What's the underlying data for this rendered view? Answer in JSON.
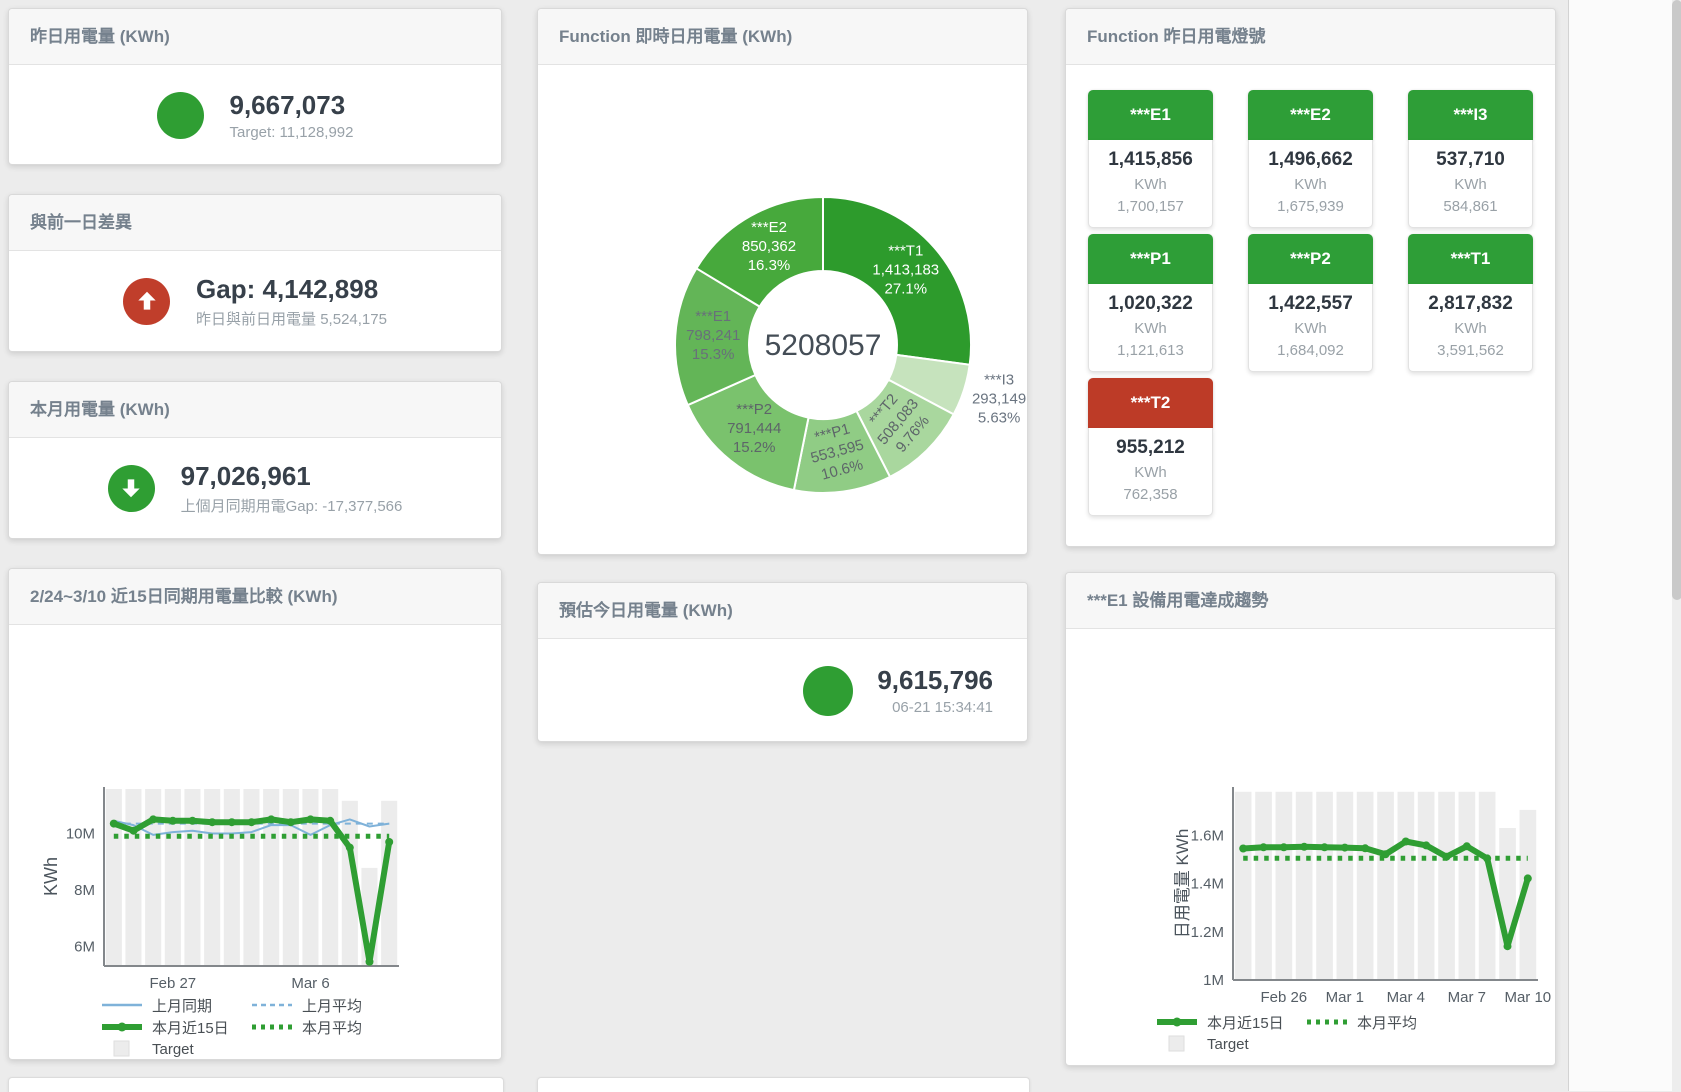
{
  "cards": {
    "yesterday": {
      "title": "昨日用電量 (KWh)",
      "value": "9,667,073",
      "sub": "Target: 11,128,992"
    },
    "day_gap": {
      "title": "與前一日差異",
      "value": "Gap: 4,142,898",
      "sub": "昨日與前日用電量 5,524,175"
    },
    "month": {
      "title": "本月用電量 (KWh)",
      "value": "97,026,961",
      "sub": "上個月同期用電Gap: -17,377,566"
    },
    "compare": {
      "title": "2/24~3/10 近15日同期用電量比較 (KWh)"
    },
    "realtime": {
      "title": "Function 即時日用電量 (KWh)"
    },
    "estimate": {
      "title": "預估今日用電量 (KWh)",
      "value": "9,615,796",
      "sub": "06-21 15:34:41"
    },
    "lights": {
      "title": "Function 昨日用電燈號"
    },
    "trend": {
      "title": "***E1 設備用電達成趨勢"
    }
  },
  "lights_tiles": [
    {
      "name": "***E1",
      "value": "1,415,856",
      "unit": "KWh",
      "target": "1,700,157",
      "status": "green"
    },
    {
      "name": "***E2",
      "value": "1,496,662",
      "unit": "KWh",
      "target": "1,675,939",
      "status": "green"
    },
    {
      "name": "***I3",
      "value": "537,710",
      "unit": "KWh",
      "target": "584,861",
      "status": "green"
    },
    {
      "name": "***P1",
      "value": "1,020,322",
      "unit": "KWh",
      "target": "1,121,613",
      "status": "green"
    },
    {
      "name": "***P2",
      "value": "1,422,557",
      "unit": "KWh",
      "target": "1,684,092",
      "status": "green"
    },
    {
      "name": "***T1",
      "value": "2,817,832",
      "unit": "KWh",
      "target": "3,591,562",
      "status": "green"
    },
    {
      "name": "***T2",
      "value": "955,212",
      "unit": "KWh",
      "target": "762,358",
      "status": "red"
    }
  ],
  "chart_data": [
    {
      "id": "realtime_donut",
      "type": "pie",
      "title": "Function 即時日用電量 (KWh)",
      "center_total": "5208057",
      "slices": [
        {
          "name": "***T1",
          "value": 1413183,
          "value_label": "1,413,183",
          "pct": "27.1%",
          "color": "#2d9b2c",
          "label_color": "#ffffff",
          "rotate": 0
        },
        {
          "name": "***I3",
          "value": 293149,
          "value_label": "293,149",
          "pct": "5.63%",
          "color": "#c6e3bd",
          "label_color": "#6a7480",
          "rotate": 0,
          "outside": true
        },
        {
          "name": "***T2",
          "value": 508083,
          "value_label": "508,083",
          "pct": "9.76%",
          "color": "#a9d79e",
          "label_color": "#5d6569",
          "rotate": -50
        },
        {
          "name": "***P1",
          "value": 553595,
          "value_label": "553,595",
          "pct": "10.6%",
          "color": "#90cc85",
          "label_color": "#5d6569",
          "rotate": -15
        },
        {
          "name": "***P2",
          "value": 791444,
          "value_label": "791,444",
          "pct": "15.2%",
          "color": "#7ac26d",
          "label_color": "#5d6569",
          "rotate": 0
        },
        {
          "name": "***E1",
          "value": 798241,
          "value_label": "798,241",
          "pct": "15.3%",
          "color": "#63b557",
          "label_color": "#68707a",
          "rotate": 0
        },
        {
          "name": "***E2",
          "value": 850362,
          "value_label": "850,362",
          "pct": "16.3%",
          "color": "#47a93c",
          "label_color": "#ffffff",
          "rotate": 0
        }
      ]
    },
    {
      "id": "compare_lines",
      "type": "line",
      "title": "2/24~3/10 近15日同期用電量比較 (KWh)",
      "ylabel": "KWh",
      "ylim": [
        5300000,
        11650000
      ],
      "yticks": [
        {
          "v": 6000000,
          "label": "6M"
        },
        {
          "v": 8000000,
          "label": "8M"
        },
        {
          "v": 10000000,
          "label": "10M"
        }
      ],
      "xticks": [
        {
          "i": 3,
          "label": "Feb 27"
        },
        {
          "i": 10,
          "label": "Mar 6"
        }
      ],
      "target_bars": [
        11580000,
        11580000,
        11580000,
        11580000,
        11580000,
        11580000,
        11580000,
        11580000,
        11580000,
        11580000,
        11580000,
        11580000,
        11160000,
        8780000,
        11160000
      ],
      "series": [
        {
          "name": "上月同期",
          "style": "thin",
          "color": "#7fb2d9",
          "values": [
            10450000,
            10300000,
            9950000,
            10050000,
            10100000,
            10000000,
            10000000,
            10050000,
            10300000,
            10300000,
            9950000,
            10300000,
            10500000,
            10250000,
            10350000
          ]
        },
        {
          "name": "上月平均",
          "style": "dashed",
          "color": "#7fb2d9",
          "values": [
            10350000,
            10350000,
            10350000,
            10350000,
            10350000,
            10350000,
            10350000,
            10350000,
            10350000,
            10350000,
            10350000,
            10350000,
            10350000,
            10350000,
            10350000
          ]
        },
        {
          "name": "本月平均",
          "style": "dotted",
          "color": "#2f9e33",
          "values": [
            9900000,
            9900000,
            9900000,
            9900000,
            9900000,
            9900000,
            9900000,
            9900000,
            9900000,
            9900000,
            9900000,
            9900000,
            9900000,
            9900000,
            9900000
          ]
        },
        {
          "name": "本月近15日",
          "style": "thick",
          "color": "#2f9e33",
          "values": [
            10350000,
            10100000,
            10500000,
            10450000,
            10450000,
            10400000,
            10400000,
            10400000,
            10500000,
            10400000,
            10500000,
            10450000,
            9500000,
            5450000,
            9700000
          ]
        }
      ],
      "legend": [
        {
          "label": "上月同期",
          "style": "thin",
          "color": "#7fb2d9"
        },
        {
          "label": "上月平均",
          "style": "dashed",
          "color": "#7fb2d9"
        },
        {
          "label": "本月近15日",
          "style": "thick",
          "color": "#2f9e33"
        },
        {
          "label": "本月平均",
          "style": "dotted",
          "color": "#2f9e33"
        },
        {
          "label": "Target",
          "style": "square",
          "color": "#ececec"
        }
      ]
    },
    {
      "id": "trend_lines",
      "type": "line",
      "title": "***E1 設備用電達成趨勢",
      "ylabel": "日用電量 KWh",
      "ylim": [
        1000000,
        1800000
      ],
      "yticks": [
        {
          "v": 1000000,
          "label": "1M"
        },
        {
          "v": 1200000,
          "label": "1.2M"
        },
        {
          "v": 1400000,
          "label": "1.4M"
        },
        {
          "v": 1600000,
          "label": "1.6M"
        }
      ],
      "xticks": [
        {
          "i": 2,
          "label": "Feb 26"
        },
        {
          "i": 5,
          "label": "Mar 1"
        },
        {
          "i": 8,
          "label": "Mar 4"
        },
        {
          "i": 11,
          "label": "Mar 7"
        },
        {
          "i": 14,
          "label": "Mar 10"
        }
      ],
      "target_bars": [
        1780000,
        1780000,
        1780000,
        1780000,
        1780000,
        1780000,
        1780000,
        1780000,
        1780000,
        1780000,
        1780000,
        1780000,
        1780000,
        1630000,
        1705000
      ],
      "series": [
        {
          "name": "本月平均",
          "style": "dotted",
          "color": "#2f9e33",
          "values": [
            1505000,
            1505000,
            1505000,
            1505000,
            1505000,
            1505000,
            1505000,
            1505000,
            1505000,
            1505000,
            1505000,
            1505000,
            1505000,
            1505000,
            1505000
          ]
        },
        {
          "name": "本月近15日",
          "style": "thick",
          "color": "#2f9e33",
          "values": [
            1545000,
            1550000,
            1550000,
            1552000,
            1550000,
            1549000,
            1546000,
            1521000,
            1574000,
            1558000,
            1511000,
            1554000,
            1504000,
            1140000,
            1421000
          ]
        }
      ],
      "legend": [
        {
          "label": "本月近15日",
          "style": "thick",
          "color": "#2f9e33"
        },
        {
          "label": "本月平均",
          "style": "dotted",
          "color": "#2f9e33"
        },
        {
          "label": "Target",
          "style": "square",
          "color": "#ececec"
        }
      ]
    }
  ]
}
